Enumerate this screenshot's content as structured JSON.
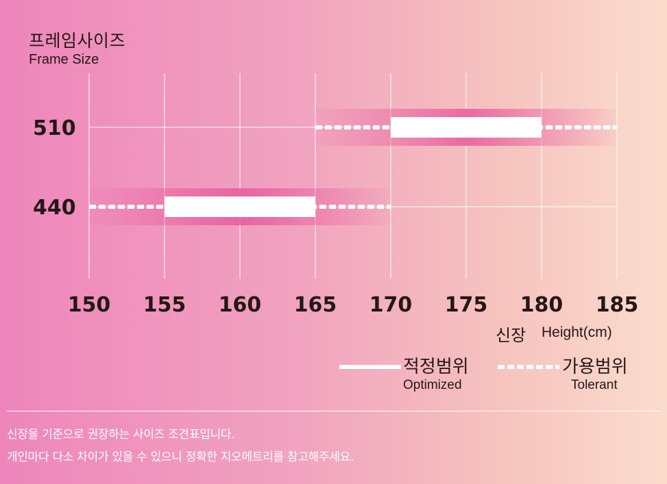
{
  "y_axis": {
    "title": "프레임사이즈",
    "subtitle": "Frame Size"
  },
  "x_axis": {
    "title_ko": "신장",
    "title_en": "Height(cm)"
  },
  "legend": {
    "optimized": {
      "title": "적정범위",
      "subtitle": "Optimized"
    },
    "tolerant": {
      "title": "가용범위",
      "subtitle": "Tolerant"
    }
  },
  "notes": [
    "신장을 기준으로 권장하는 사이즈 조견표입니다.",
    "개인마다 다소 차이가 있을 수 있으니 정확한 지오메트리를 참고해주세요."
  ],
  "colors": {
    "band": "#e8569a",
    "bar": "#ffffff",
    "text": "#231815"
  },
  "chart_data": {
    "type": "bar",
    "orientation": "horizontal-range",
    "x": [
      150,
      155,
      160,
      165,
      170,
      175,
      180,
      185
    ],
    "xlim": [
      150,
      185
    ],
    "categories": [
      "510",
      "440"
    ],
    "series": [
      {
        "name": "적정범위",
        "values": [
          [
            170,
            180
          ],
          [
            155,
            165
          ]
        ]
      },
      {
        "name": "가용범위",
        "values": [
          [
            165,
            185
          ],
          [
            150,
            170
          ]
        ]
      }
    ],
    "grid": true
  }
}
